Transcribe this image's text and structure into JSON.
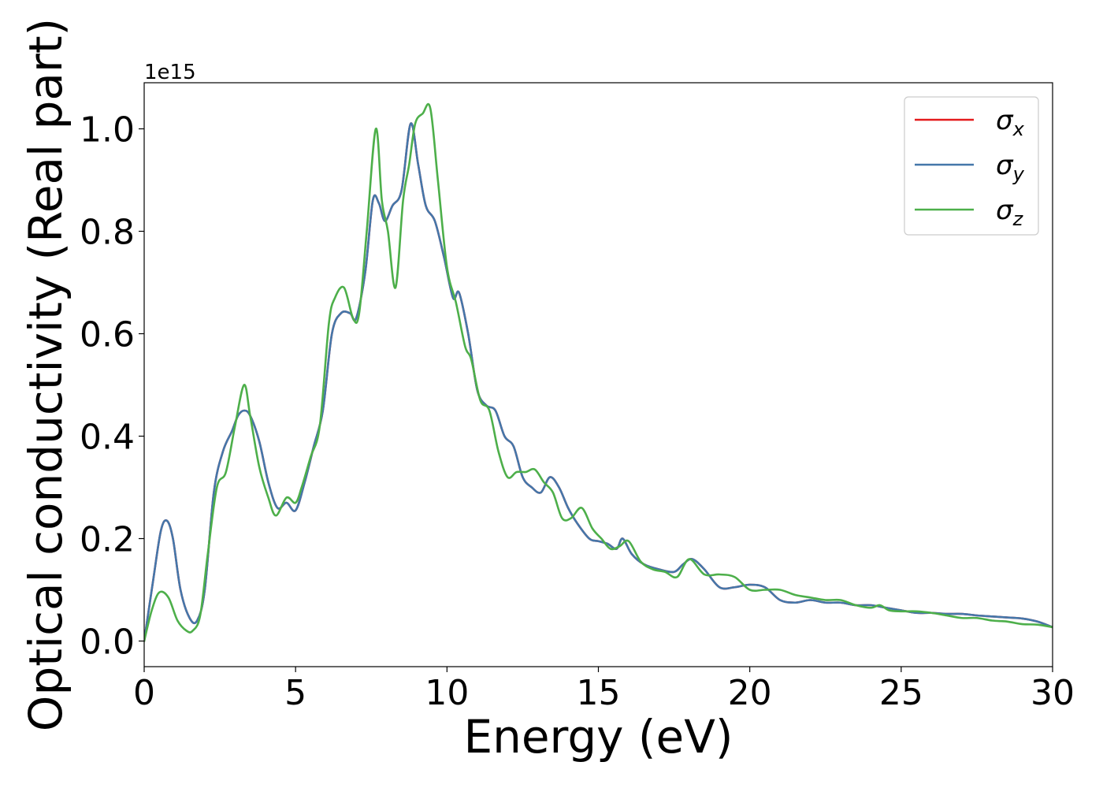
{
  "chart_data": {
    "type": "line",
    "title": "",
    "xlabel": "Energy (eV)",
    "ylabel": "Optical conductivity (Real part)",
    "y_offset_label": "1e15",
    "xlim": [
      0,
      30
    ],
    "ylim": [
      -0.05,
      1.09
    ],
    "x_ticks": [
      0,
      5,
      10,
      15,
      20,
      25,
      30
    ],
    "x_tick_labels": [
      "0",
      "5",
      "10",
      "15",
      "20",
      "25",
      "30"
    ],
    "y_ticks": [
      0.0,
      0.2,
      0.4,
      0.6,
      0.8,
      1.0
    ],
    "y_tick_labels": [
      "0.0",
      "0.2",
      "0.4",
      "0.6",
      "0.8",
      "1.0"
    ],
    "grid": false,
    "legend_position": "top-right",
    "series": [
      {
        "name": "σx",
        "legend_base": "σ",
        "legend_sub": "x",
        "color": "#e41a1c",
        "x": [
          0,
          0.3,
          0.55,
          0.75,
          0.95,
          1.2,
          1.5,
          1.75,
          2.0,
          2.3,
          2.6,
          2.9,
          3.1,
          3.3,
          3.5,
          3.8,
          4.1,
          4.4,
          4.7,
          5.0,
          5.3,
          5.6,
          5.9,
          6.2,
          6.5,
          6.8,
          7.0,
          7.3,
          7.55,
          7.75,
          7.95,
          8.2,
          8.5,
          8.8,
          9.05,
          9.3,
          9.6,
          9.9,
          10.2,
          10.4,
          10.7,
          11.0,
          11.3,
          11.6,
          11.9,
          12.2,
          12.5,
          12.8,
          13.1,
          13.4,
          13.7,
          14.0,
          14.3,
          14.7,
          15.0,
          15.3,
          15.6,
          15.8,
          16.1,
          16.5,
          17.0,
          17.5,
          17.8,
          18.1,
          18.5,
          19.0,
          19.5,
          20.0,
          20.5,
          21.0,
          21.5,
          22.0,
          22.5,
          23.0,
          23.5,
          24.0,
          24.5,
          25.0,
          25.5,
          26.0,
          26.5,
          27.0,
          27.5,
          28.0,
          28.5,
          29.0,
          29.5,
          30.0
        ],
        "y": [
          0.0,
          0.12,
          0.215,
          0.235,
          0.2,
          0.1,
          0.045,
          0.04,
          0.1,
          0.29,
          0.37,
          0.41,
          0.44,
          0.45,
          0.44,
          0.39,
          0.31,
          0.26,
          0.27,
          0.255,
          0.31,
          0.38,
          0.45,
          0.6,
          0.64,
          0.64,
          0.63,
          0.72,
          0.86,
          0.855,
          0.82,
          0.85,
          0.88,
          1.01,
          0.93,
          0.85,
          0.82,
          0.75,
          0.67,
          0.68,
          0.6,
          0.49,
          0.46,
          0.45,
          0.4,
          0.38,
          0.32,
          0.3,
          0.29,
          0.32,
          0.3,
          0.26,
          0.23,
          0.2,
          0.195,
          0.19,
          0.18,
          0.2,
          0.17,
          0.15,
          0.14,
          0.135,
          0.15,
          0.16,
          0.14,
          0.105,
          0.105,
          0.11,
          0.105,
          0.08,
          0.075,
          0.08,
          0.075,
          0.075,
          0.07,
          0.07,
          0.065,
          0.06,
          0.055,
          0.055,
          0.053,
          0.053,
          0.05,
          0.048,
          0.046,
          0.044,
          0.038,
          0.027
        ]
      },
      {
        "name": "σy",
        "legend_base": "σ",
        "legend_sub": "y",
        "color": "#4477aa",
        "x": [
          0,
          0.3,
          0.55,
          0.75,
          0.95,
          1.2,
          1.5,
          1.75,
          2.0,
          2.3,
          2.6,
          2.9,
          3.1,
          3.3,
          3.5,
          3.8,
          4.1,
          4.4,
          4.7,
          5.0,
          5.3,
          5.6,
          5.9,
          6.2,
          6.5,
          6.8,
          7.0,
          7.3,
          7.55,
          7.75,
          7.95,
          8.2,
          8.5,
          8.8,
          9.05,
          9.3,
          9.6,
          9.9,
          10.2,
          10.4,
          10.7,
          11.0,
          11.3,
          11.6,
          11.9,
          12.2,
          12.5,
          12.8,
          13.1,
          13.4,
          13.7,
          14.0,
          14.3,
          14.7,
          15.0,
          15.3,
          15.6,
          15.8,
          16.1,
          16.5,
          17.0,
          17.5,
          17.8,
          18.1,
          18.5,
          19.0,
          19.5,
          20.0,
          20.5,
          21.0,
          21.5,
          22.0,
          22.5,
          23.0,
          23.5,
          24.0,
          24.5,
          25.0,
          25.5,
          26.0,
          26.5,
          27.0,
          27.5,
          28.0,
          28.5,
          29.0,
          29.5,
          30.0
        ],
        "y": [
          0.0,
          0.12,
          0.215,
          0.235,
          0.2,
          0.1,
          0.045,
          0.04,
          0.1,
          0.29,
          0.37,
          0.41,
          0.44,
          0.45,
          0.44,
          0.39,
          0.31,
          0.26,
          0.27,
          0.255,
          0.31,
          0.38,
          0.45,
          0.6,
          0.64,
          0.64,
          0.63,
          0.72,
          0.86,
          0.855,
          0.82,
          0.85,
          0.88,
          1.01,
          0.93,
          0.85,
          0.82,
          0.75,
          0.67,
          0.68,
          0.6,
          0.49,
          0.46,
          0.45,
          0.4,
          0.38,
          0.32,
          0.3,
          0.29,
          0.32,
          0.3,
          0.26,
          0.23,
          0.2,
          0.195,
          0.19,
          0.18,
          0.2,
          0.17,
          0.15,
          0.14,
          0.135,
          0.15,
          0.16,
          0.14,
          0.105,
          0.105,
          0.11,
          0.105,
          0.08,
          0.075,
          0.08,
          0.075,
          0.075,
          0.07,
          0.07,
          0.065,
          0.06,
          0.055,
          0.055,
          0.053,
          0.053,
          0.05,
          0.048,
          0.046,
          0.044,
          0.038,
          0.027
        ]
      },
      {
        "name": "σz",
        "legend_base": "σ",
        "legend_sub": "z",
        "color": "#4daf4a",
        "x": [
          0,
          0.25,
          0.5,
          0.8,
          1.1,
          1.4,
          1.6,
          1.85,
          2.1,
          2.4,
          2.7,
          3.0,
          3.3,
          3.5,
          3.8,
          4.1,
          4.35,
          4.7,
          5.0,
          5.2,
          5.5,
          5.8,
          6.1,
          6.3,
          6.6,
          6.9,
          7.1,
          7.35,
          7.65,
          7.85,
          8.05,
          8.3,
          8.55,
          8.75,
          8.95,
          9.2,
          9.45,
          9.7,
          10.0,
          10.3,
          10.6,
          10.8,
          11.1,
          11.4,
          11.7,
          12.0,
          12.3,
          12.6,
          12.9,
          13.2,
          13.5,
          13.8,
          14.1,
          14.45,
          14.8,
          15.1,
          15.4,
          15.7,
          16.0,
          16.4,
          16.8,
          17.2,
          17.6,
          18.0,
          18.5,
          19.0,
          19.5,
          20.0,
          20.5,
          21.0,
          21.5,
          22.0,
          22.5,
          23.0,
          23.5,
          24.0,
          24.3,
          24.6,
          25.0,
          25.5,
          26.0,
          26.5,
          27.0,
          27.5,
          28.0,
          28.5,
          29.0,
          29.5,
          30.0
        ],
        "y": [
          0.0,
          0.06,
          0.095,
          0.085,
          0.04,
          0.02,
          0.02,
          0.05,
          0.17,
          0.3,
          0.33,
          0.42,
          0.5,
          0.44,
          0.34,
          0.28,
          0.245,
          0.28,
          0.27,
          0.3,
          0.36,
          0.42,
          0.62,
          0.67,
          0.69,
          0.63,
          0.64,
          0.8,
          1.0,
          0.86,
          0.8,
          0.69,
          0.86,
          0.93,
          1.01,
          1.03,
          1.04,
          0.9,
          0.73,
          0.66,
          0.575,
          0.55,
          0.47,
          0.45,
          0.37,
          0.32,
          0.33,
          0.33,
          0.335,
          0.31,
          0.29,
          0.24,
          0.24,
          0.26,
          0.22,
          0.2,
          0.18,
          0.185,
          0.195,
          0.155,
          0.14,
          0.135,
          0.125,
          0.16,
          0.13,
          0.13,
          0.125,
          0.1,
          0.1,
          0.1,
          0.09,
          0.085,
          0.08,
          0.08,
          0.07,
          0.065,
          0.07,
          0.06,
          0.058,
          0.058,
          0.055,
          0.05,
          0.045,
          0.045,
          0.04,
          0.038,
          0.033,
          0.032,
          0.027
        ]
      }
    ]
  }
}
